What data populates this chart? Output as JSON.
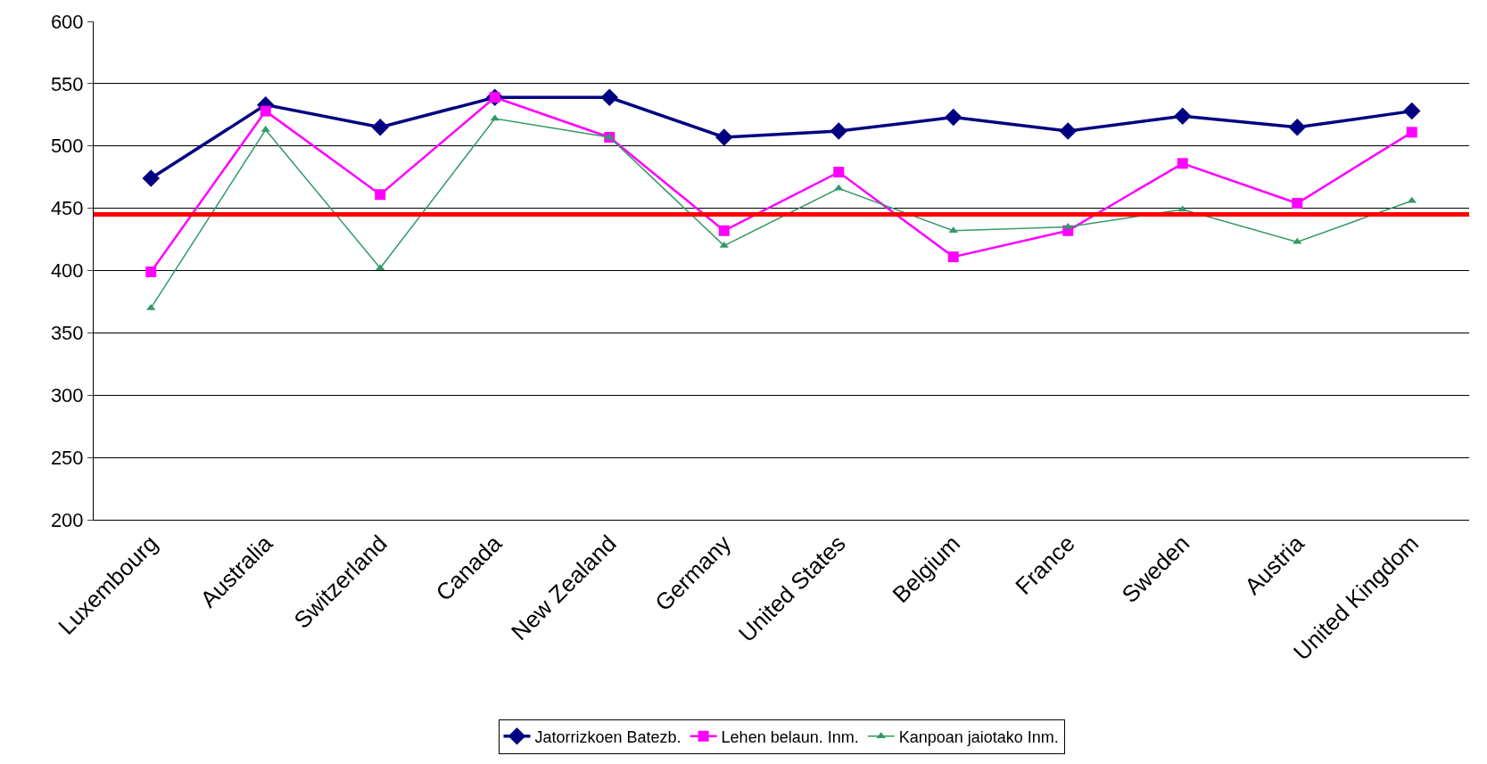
{
  "chart_data": {
    "type": "line",
    "categories": [
      "Luxembourg",
      "Australia",
      "Switzerland",
      "Canada",
      "New Zealand",
      "Germany",
      "United States",
      "Belgium",
      "France",
      "Sweden",
      "Austria",
      "United Kingdom"
    ],
    "series": [
      {
        "name": "Jatorrizkoen Batezb.",
        "color": "#000080",
        "marker": "diamond",
        "values": [
          474,
          533,
          515,
          539,
          539,
          507,
          512,
          523,
          512,
          524,
          515,
          528
        ]
      },
      {
        "name": "Lehen belaun. Inm.",
        "color": "#ff00ff",
        "marker": "square",
        "values": [
          399,
          528,
          461,
          539,
          507,
          432,
          479,
          411,
          432,
          486,
          454,
          511
        ]
      },
      {
        "name": "Kanpoan jaiotako Inm.",
        "color": "#339966",
        "marker": "triangle",
        "values": [
          370,
          513,
          402,
          522,
          507,
          420,
          466,
          432,
          435,
          449,
          423,
          456
        ]
      }
    ],
    "ylim": [
      200,
      600
    ],
    "yticks": [
      200,
      250,
      300,
      350,
      400,
      450,
      500,
      550,
      600
    ],
    "grid": "y",
    "legend": "bottom",
    "ref_lines": [
      {
        "axis": "y",
        "value": 445,
        "color": "#ff0000"
      }
    ]
  }
}
